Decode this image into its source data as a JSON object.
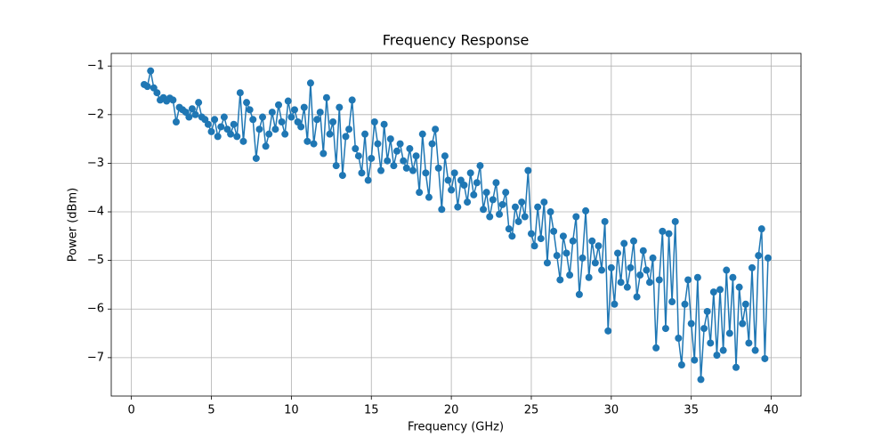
{
  "chart_data": {
    "type": "line",
    "title": "Frequency Response",
    "xlabel": "Frequency (GHz)",
    "ylabel": "Power (dBm)",
    "x": [
      0.8,
      1,
      1.2,
      1.4,
      1.6,
      1.8,
      2,
      2.2,
      2.4,
      2.6,
      2.8,
      3,
      3.2,
      3.4,
      3.6,
      3.8,
      4,
      4.2,
      4.4,
      4.6,
      4.8,
      5,
      5.2,
      5.4,
      5.6,
      5.8,
      6,
      6.2,
      6.4,
      6.6,
      6.8,
      7,
      7.2,
      7.4,
      7.6,
      7.8,
      8,
      8.2,
      8.4,
      8.6,
      8.8,
      9,
      9.2,
      9.4,
      9.6,
      9.8,
      10,
      10.2,
      10.4,
      10.6,
      10.8,
      11,
      11.2,
      11.4,
      11.6,
      11.8,
      12,
      12.2,
      12.4,
      12.6,
      12.8,
      13,
      13.2,
      13.4,
      13.6,
      13.8,
      14,
      14.2,
      14.4,
      14.6,
      14.8,
      15,
      15.2,
      15.4,
      15.6,
      15.8,
      16,
      16.2,
      16.4,
      16.6,
      16.8,
      17,
      17.2,
      17.4,
      17.6,
      17.8,
      18,
      18.2,
      18.4,
      18.6,
      18.8,
      19,
      19.2,
      19.4,
      19.6,
      19.8,
      20,
      20.2,
      20.4,
      20.6,
      20.8,
      21,
      21.2,
      21.4,
      21.6,
      21.8,
      22,
      22.2,
      22.4,
      22.6,
      22.8,
      23,
      23.2,
      23.4,
      23.6,
      23.8,
      24,
      24.2,
      24.4,
      24.6,
      24.8,
      25,
      25.2,
      25.4,
      25.6,
      25.8,
      26,
      26.2,
      26.4,
      26.6,
      26.8,
      27,
      27.2,
      27.4,
      27.6,
      27.8,
      28,
      28.2,
      28.4,
      28.6,
      28.8,
      29,
      29.2,
      29.4,
      29.6,
      29.8,
      30,
      30.2,
      30.4,
      30.6,
      30.8,
      31,
      31.2,
      31.4,
      31.6,
      31.8,
      32,
      32.2,
      32.4,
      32.6,
      32.8,
      33,
      33.2,
      33.4,
      33.6,
      33.8,
      34,
      34.2,
      34.4,
      34.6,
      34.8,
      35,
      35.2,
      35.4,
      35.6,
      35.8,
      36,
      36.2,
      36.4,
      36.6,
      36.8,
      37,
      37.2,
      37.4,
      37.6,
      37.8,
      38,
      38.2,
      38.4,
      38.6,
      38.8,
      39,
      39.2,
      39.4,
      39.6,
      39.8
    ],
    "series": [
      {
        "color": "#1f77b4",
        "values": [
          -1.38,
          -1.42,
          -1.1,
          -1.45,
          -1.55,
          -1.7,
          -1.65,
          -1.72,
          -1.66,
          -1.7,
          -2.15,
          -1.85,
          -1.9,
          -1.95,
          -2.05,
          -1.88,
          -2.0,
          -1.75,
          -2.05,
          -2.1,
          -2.2,
          -2.35,
          -2.1,
          -2.45,
          -2.25,
          -2.05,
          -2.3,
          -2.4,
          -2.2,
          -2.45,
          -1.55,
          -2.55,
          -1.75,
          -1.9,
          -2.1,
          -2.9,
          -2.3,
          -2.05,
          -2.65,
          -2.4,
          -1.95,
          -2.3,
          -1.8,
          -2.15,
          -2.4,
          -1.72,
          -2.05,
          -1.9,
          -2.15,
          -2.25,
          -1.85,
          -2.55,
          -1.35,
          -2.6,
          -2.1,
          -1.95,
          -2.8,
          -1.65,
          -2.4,
          -2.15,
          -3.05,
          -1.85,
          -3.25,
          -2.45,
          -2.3,
          -1.7,
          -2.7,
          -2.85,
          -3.2,
          -2.4,
          -3.35,
          -2.9,
          -2.15,
          -2.6,
          -3.15,
          -2.2,
          -2.95,
          -2.5,
          -3.05,
          -2.75,
          -2.6,
          -2.95,
          -3.1,
          -2.7,
          -3.15,
          -2.85,
          -3.6,
          -2.4,
          -3.2,
          -3.7,
          -2.6,
          -2.3,
          -3.1,
          -3.95,
          -2.85,
          -3.35,
          -3.55,
          -3.2,
          -3.9,
          -3.35,
          -3.45,
          -3.8,
          -3.2,
          -3.65,
          -3.4,
          -3.05,
          -3.95,
          -3.6,
          -4.1,
          -3.75,
          -3.4,
          -4.05,
          -3.85,
          -3.6,
          -4.35,
          -4.5,
          -3.9,
          -4.2,
          -3.8,
          -4.1,
          -3.15,
          -4.45,
          -4.7,
          -3.9,
          -4.55,
          -3.8,
          -5.05,
          -4.0,
          -4.4,
          -4.9,
          -5.4,
          -4.5,
          -4.85,
          -5.3,
          -4.6,
          -4.1,
          -5.7,
          -4.95,
          -3.98,
          -5.35,
          -4.6,
          -5.05,
          -4.7,
          -5.2,
          -4.2,
          -6.45,
          -5.15,
          -5.9,
          -4.85,
          -5.45,
          -4.65,
          -5.55,
          -5.15,
          -4.6,
          -5.75,
          -5.3,
          -4.8,
          -5.2,
          -5.45,
          -4.95,
          -6.8,
          -5.4,
          -4.4,
          -6.4,
          -4.45,
          -5.85,
          -4.2,
          -6.6,
          -7.15,
          -5.9,
          -5.4,
          -6.3,
          -7.05,
          -5.35,
          -7.45,
          -6.4,
          -6.05,
          -6.7,
          -5.65,
          -6.95,
          -5.6,
          -6.85,
          -5.2,
          -6.5,
          -5.35,
          -7.2,
          -5.55,
          -6.3,
          -5.9,
          -6.7,
          -5.15,
          -6.85,
          -4.9,
          -4.35,
          -7.02,
          -4.95
        ]
      }
    ],
    "xlim": [
      -1.26,
      41.86
    ],
    "ylim": [
      -7.79,
      -0.74
    ],
    "xticks": [
      0,
      5,
      10,
      15,
      20,
      25,
      30,
      35,
      40
    ],
    "yticks": [
      {
        "value": -1,
        "label": "−1"
      },
      {
        "value": -2,
        "label": "−2"
      },
      {
        "value": -3,
        "label": "−3"
      },
      {
        "value": -4,
        "label": "−4"
      },
      {
        "value": -5,
        "label": "−5"
      },
      {
        "value": -6,
        "label": "−6"
      },
      {
        "value": -7,
        "label": "−7"
      }
    ],
    "grid": true
  }
}
